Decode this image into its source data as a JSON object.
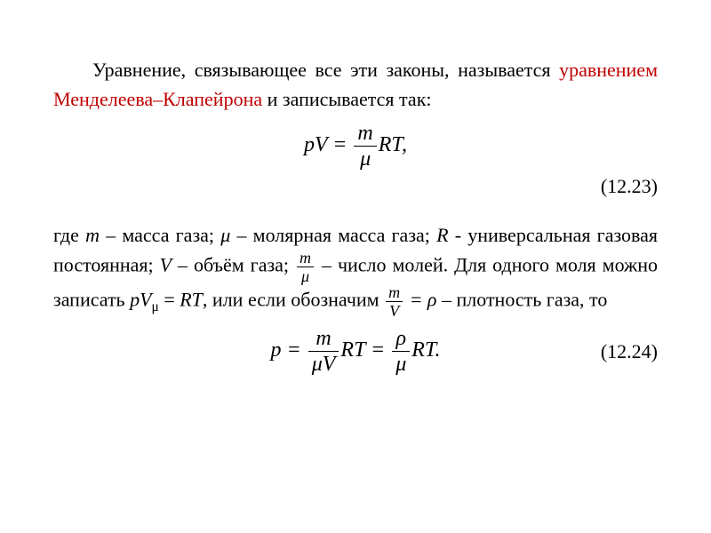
{
  "colors": {
    "text": "#000000",
    "accent": "#c00000",
    "background": "#ffffff"
  },
  "typography": {
    "family": "Times New Roman",
    "body_size_pt": 16,
    "equation_size_pt": 18
  },
  "para1": {
    "lead": "Уравнение, связывающее все эти законы, называется ",
    "term": "уравнением Менделеева–Клапейрона",
    "tail": " и записывается так:"
  },
  "eq1": {
    "lhs": "pV",
    "eq": " = ",
    "frac_num": "m",
    "frac_den": "μ",
    "rhs": "RT",
    "comma": ",",
    "number": "(12.23)"
  },
  "para2": {
    "s1": "где ",
    "m": "m",
    "s2": " – масса газа; ",
    "mu": "μ",
    "s3": " – молярная масса газа; ",
    "R": "R",
    "s4": " - универсальная газовая постоянная; ",
    "V": "V",
    "s5": " – объём газа; ",
    "frac1_num": "m",
    "frac1_den": "μ",
    "s6": " – число молей. Для одного моля можно записать ",
    "pV": "pV",
    "sub_mu": "μ",
    "s7": " = ",
    "RT": "RT",
    "s8": ", или если обозначим  ",
    "frac2_num": "m",
    "frac2_den": "V",
    "eq_rho": " = ρ",
    "s9": "   – плотность газа, то"
  },
  "eq2": {
    "p": "p",
    "eq1": " = ",
    "f1_num": "m",
    "f1_den": "μV",
    "mid1": "RT",
    "eq2": " = ",
    "f2_num": "ρ",
    "f2_den": "μ",
    "mid2": "RT",
    "dot": ".",
    "number": "(12.24)"
  }
}
